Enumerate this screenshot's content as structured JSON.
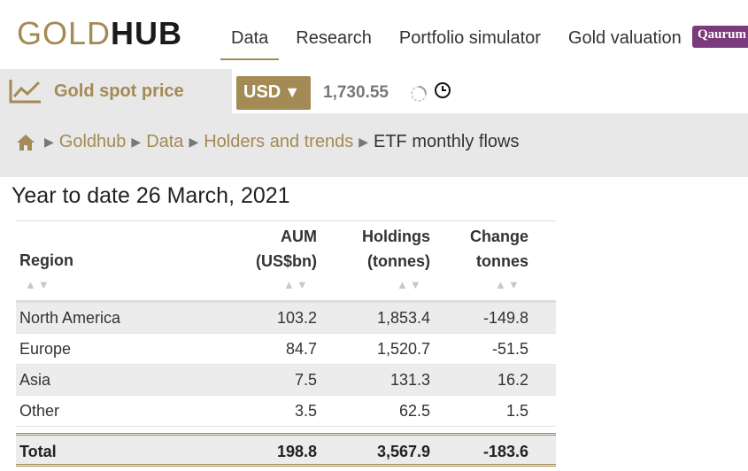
{
  "header": {
    "logo_gold": "GOLD",
    "logo_hub": "HUB",
    "nav": [
      {
        "label": "Data",
        "active": true
      },
      {
        "label": "Research"
      },
      {
        "label": "Portfolio simulator"
      },
      {
        "label": "Gold valuation"
      }
    ],
    "badge": "Qaurum"
  },
  "price_bar": {
    "label": "Gold spot price",
    "currency": "USD",
    "value": "1,730.55",
    "icons": [
      "chart-line-icon",
      "loading-spinner-icon",
      "clock-icon"
    ]
  },
  "breadcrumb": {
    "items": [
      "Goldhub",
      "Data",
      "Holders and trends"
    ],
    "current": "ETF monthly flows"
  },
  "page": {
    "title": "Year to date 26 March, 2021"
  },
  "table": {
    "headers": {
      "region": "Region",
      "aum_1": "AUM",
      "aum_2": "(US$bn)",
      "holdings_1": "Holdings",
      "holdings_2": "(tonnes)",
      "change_1": "Change",
      "change_2": "tonnes"
    },
    "sort_glyph": "▲▼",
    "rows": [
      {
        "region": "North America",
        "aum": "103.2",
        "holdings": "1,853.4",
        "change": "-149.8"
      },
      {
        "region": "Europe",
        "aum": "84.7",
        "holdings": "1,520.7",
        "change": "-51.5"
      },
      {
        "region": "Asia",
        "aum": "7.5",
        "holdings": "131.3",
        "change": "16.2"
      },
      {
        "region": "Other",
        "aum": "3.5",
        "holdings": "62.5",
        "change": "1.5"
      }
    ],
    "total": {
      "region": "Total",
      "aum": "198.8",
      "holdings": "3,567.9",
      "change": "-183.6"
    }
  },
  "colors": {
    "accent_gold": "#a48a55",
    "badge_purple": "#7b3a7b",
    "panel_grey": "#e8e8e8"
  }
}
